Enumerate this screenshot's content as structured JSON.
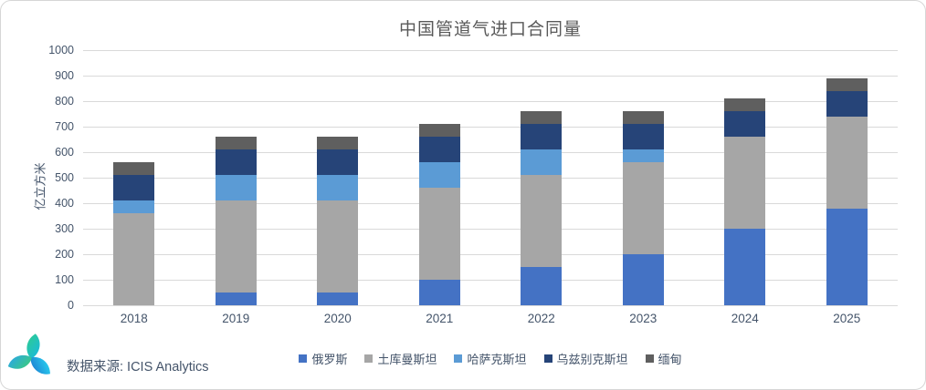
{
  "title": "中国管道气进口合同量",
  "source": {
    "label": "数据来源: ICIS Analytics"
  },
  "colors": {
    "russia_blue": "#4472C4",
    "turkmenistan_gray": "#A6A6A6",
    "kazakhstan_light_blue": "#5B9BD5",
    "uzbekistan_dark_blue": "#264478",
    "myanmar_dark_gray": "#5F5F5F",
    "axis_text": "#44546A",
    "gridline": "#D9D9D9",
    "title_text": "#595959"
  },
  "chart_data": {
    "type": "bar",
    "stacked": true,
    "title": "中国管道气进口合同量",
    "xlabel": "",
    "ylabel": "亿立方米",
    "ylim": [
      0,
      1000
    ],
    "ytick_step": 100,
    "grid": true,
    "legend_position": "bottom",
    "categories": [
      "2018",
      "2019",
      "2020",
      "2021",
      "2022",
      "2023",
      "2024",
      "2025"
    ],
    "series": [
      {
        "name": "俄罗斯",
        "color": "#4472C4",
        "values": [
          0,
          50,
          50,
          100,
          150,
          200,
          300,
          380
        ]
      },
      {
        "name": "土库曼斯坦",
        "color": "#A6A6A6",
        "values": [
          360,
          360,
          360,
          360,
          360,
          360,
          360,
          360
        ]
      },
      {
        "name": "哈萨克斯坦",
        "color": "#5B9BD5",
        "values": [
          50,
          100,
          100,
          100,
          100,
          50,
          0,
          0
        ]
      },
      {
        "name": "乌兹别克斯坦",
        "color": "#264478",
        "values": [
          100,
          100,
          100,
          100,
          100,
          100,
          100,
          100
        ]
      },
      {
        "name": "缅甸",
        "color": "#5F5F5F",
        "values": [
          50,
          50,
          50,
          50,
          50,
          50,
          50,
          50
        ]
      }
    ],
    "totals": [
      560,
      660,
      660,
      710,
      760,
      760,
      810,
      890
    ]
  }
}
